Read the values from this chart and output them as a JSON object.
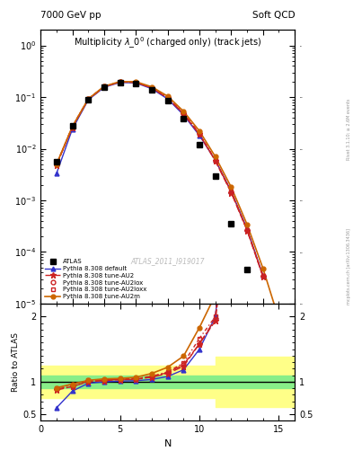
{
  "title_top_left": "7000 GeV pp",
  "title_top_right": "Soft QCD",
  "plot_title": "Multiplicity $\\lambda\\_0^0$ (charged only) (track jets)",
  "watermark": "ATLAS_2011_I919017",
  "right_label_top": "Rivet 3.1.10; ≥ 2.6M events",
  "right_label_bottom": "mcplots.cern.ch [arXiv:1306.3436]",
  "xlabel": "N",
  "ylabel_bottom": "Ratio to ATLAS",
  "xlim": [
    0,
    16
  ],
  "atlas_x": [
    1,
    2,
    3,
    4,
    5,
    6,
    7,
    8,
    9,
    10,
    11,
    12,
    13
  ],
  "atlas_y": [
    0.0055,
    0.028,
    0.09,
    0.155,
    0.19,
    0.185,
    0.14,
    0.085,
    0.038,
    0.012,
    0.003,
    0.00035,
    4.5e-05
  ],
  "pythia_default_x": [
    1,
    2,
    3,
    4,
    5,
    6,
    7,
    8,
    9,
    10,
    11,
    12,
    13,
    14
  ],
  "pythia_default_y": [
    0.0033,
    0.024,
    0.088,
    0.155,
    0.192,
    0.188,
    0.145,
    0.092,
    0.045,
    0.018,
    0.006,
    0.0015,
    0.00028,
    3.5e-05
  ],
  "pythia_AU2_x": [
    1,
    2,
    3,
    4,
    5,
    6,
    7,
    8,
    9,
    10,
    11,
    12,
    13,
    14
  ],
  "pythia_AU2_y": [
    0.0048,
    0.026,
    0.09,
    0.158,
    0.196,
    0.192,
    0.15,
    0.096,
    0.047,
    0.019,
    0.0058,
    0.0014,
    0.00026,
    3.3e-05
  ],
  "pythia_AU2lox_x": [
    1,
    2,
    3,
    4,
    5,
    6,
    7,
    8,
    9,
    10,
    11,
    12,
    13,
    14
  ],
  "pythia_AU2lox_y": [
    0.0049,
    0.026,
    0.091,
    0.159,
    0.197,
    0.193,
    0.151,
    0.097,
    0.048,
    0.019,
    0.0059,
    0.00145,
    0.000265,
    3.4e-05
  ],
  "pythia_AU2loxx_x": [
    1,
    2,
    3,
    4,
    5,
    6,
    7,
    8,
    9,
    10,
    11,
    12,
    13,
    14
  ],
  "pythia_AU2loxx_y": [
    0.005,
    0.027,
    0.092,
    0.16,
    0.198,
    0.194,
    0.152,
    0.098,
    0.049,
    0.02,
    0.006,
    0.0015,
    0.00027,
    3.5e-05
  ],
  "pythia_AU2m_x": [
    1,
    2,
    3,
    4,
    5,
    6,
    7,
    8,
    9,
    10,
    11,
    12,
    13,
    14,
    15
  ],
  "pythia_AU2m_y": [
    0.005,
    0.027,
    0.092,
    0.162,
    0.2,
    0.198,
    0.158,
    0.104,
    0.053,
    0.022,
    0.007,
    0.0018,
    0.00034,
    4.8e-05,
    5e-06
  ],
  "color_default": "#3333cc",
  "color_AU2": "#cc2222",
  "color_AU2lox": "#cc2222",
  "color_AU2loxx": "#cc2222",
  "color_AU2m": "#cc6600",
  "band_yellow_edges": [
    0,
    5,
    10,
    11,
    16
  ],
  "band_yellow_lo_vals": [
    0.75,
    0.75,
    0.75,
    0.62,
    0.62
  ],
  "band_yellow_hi_vals": [
    1.25,
    1.25,
    1.25,
    1.38,
    1.38
  ],
  "band_green_lo": 0.9,
  "band_green_hi": 1.1
}
